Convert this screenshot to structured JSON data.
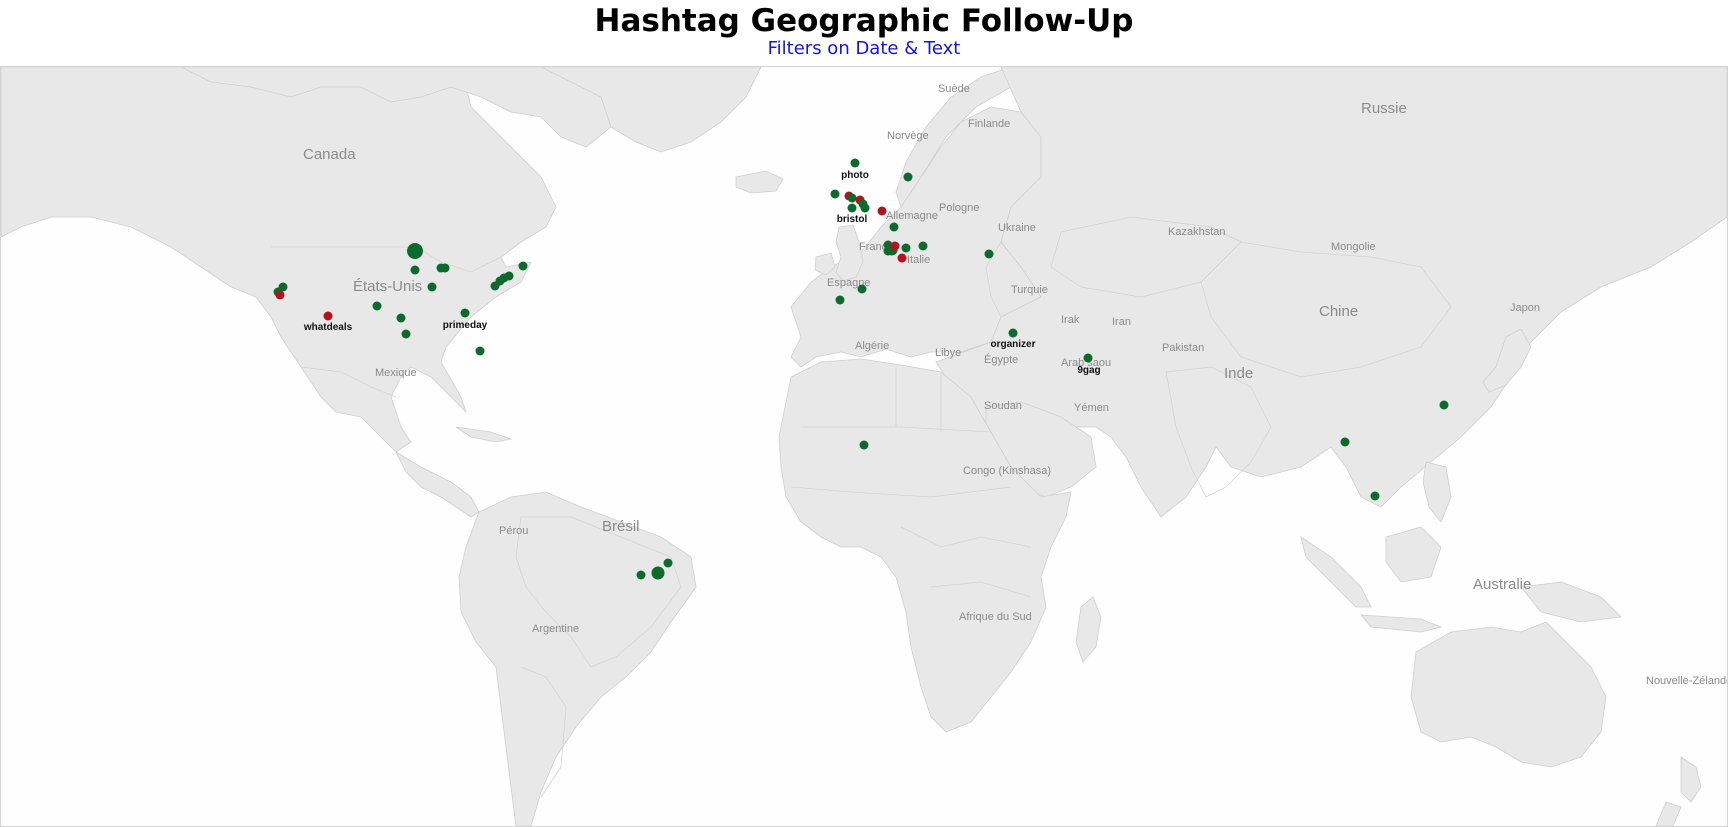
{
  "header": {
    "title": "Hashtag Geographic Follow-Up",
    "subtitle": "Filters on Date & Text"
  },
  "map": {
    "countries": {
      "russie": "Russie",
      "suede": "Suède",
      "finlande": "Finlande",
      "norvege": "Norvège",
      "canada": "Canada",
      "pologne": "Pologne",
      "allemagne": "Allemagne",
      "ukraine": "Ukraine",
      "kazakhstan": "Kazakhstan",
      "mongolie": "Mongolie",
      "france": "France",
      "italie": "Italie",
      "espagne": "Espagne",
      "etats_unis": "États-Unis",
      "turquie": "Turquie",
      "chine": "Chine",
      "japon": "Japon",
      "irak": "Irak",
      "iran": "Iran",
      "pakistan": "Pakistan",
      "algerie": "Algérie",
      "libye": "Libye",
      "egypte": "Égypte",
      "arabie": "Arab saou",
      "inde": "Inde",
      "mexique": "Mexique",
      "soudan": "Soudan",
      "yemen": "Yémen",
      "congo": "Congo (Kinshasa)",
      "bresil": "Brésil",
      "perou": "Pérou",
      "australie": "Australie",
      "argentine": "Argentine",
      "afrique_du_sud": "Afrique du Sud",
      "nouvelle_zelande": "Nouvelle-Zélande"
    },
    "point_labels": {
      "photo": "photo",
      "bristol": "bristol",
      "whatdeals": "whatdeals",
      "primeday": "primeday",
      "organizer": "organizer",
      "ninegag": "9gag"
    },
    "colors": {
      "positive": "#0c6b2c",
      "negative": "#b3121f",
      "land": "#e8e8e8",
      "title": "#000000",
      "subtitle": "#1414e6"
    }
  }
}
